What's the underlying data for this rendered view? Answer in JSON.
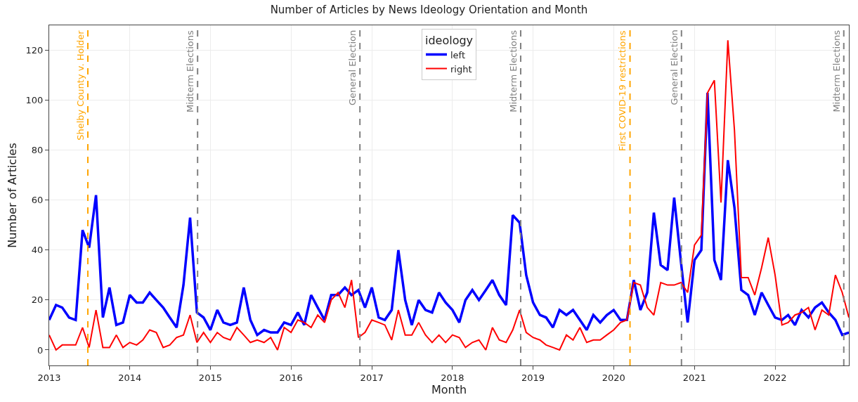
{
  "chart_data": {
    "type": "line",
    "title": "Number of Articles by News Ideology Orientation and Month",
    "xlabel": "Month",
    "ylabel": "Number of Articles",
    "legend_title": "ideology",
    "legend": "top",
    "grid": true,
    "line_style": "solid",
    "x": [
      "2013-01",
      "2013-02",
      "2013-03",
      "2013-04",
      "2013-05",
      "2013-06",
      "2013-07",
      "2013-08",
      "2013-09",
      "2013-10",
      "2013-11",
      "2013-12",
      "2014-01",
      "2014-02",
      "2014-03",
      "2014-04",
      "2014-05",
      "2014-06",
      "2014-07",
      "2014-08",
      "2014-09",
      "2014-10",
      "2014-11",
      "2014-12",
      "2015-01",
      "2015-02",
      "2015-03",
      "2015-04",
      "2015-05",
      "2015-06",
      "2015-07",
      "2015-08",
      "2015-09",
      "2015-10",
      "2015-11",
      "2015-12",
      "2016-01",
      "2016-02",
      "2016-03",
      "2016-04",
      "2016-05",
      "2016-06",
      "2016-07",
      "2016-08",
      "2016-09",
      "2016-10",
      "2016-11",
      "2016-12",
      "2017-01",
      "2017-02",
      "2017-03",
      "2017-04",
      "2017-05",
      "2017-06",
      "2017-07",
      "2017-08",
      "2017-09",
      "2017-10",
      "2017-11",
      "2017-12",
      "2018-01",
      "2018-02",
      "2018-03",
      "2018-04",
      "2018-05",
      "2018-06",
      "2018-07",
      "2018-08",
      "2018-09",
      "2018-10",
      "2018-11",
      "2018-12",
      "2019-01",
      "2019-02",
      "2019-03",
      "2019-04",
      "2019-05",
      "2019-06",
      "2019-07",
      "2019-08",
      "2019-09",
      "2019-10",
      "2019-11",
      "2019-12",
      "2020-01",
      "2020-02",
      "2020-03",
      "2020-04",
      "2020-05",
      "2020-06",
      "2020-07",
      "2020-08",
      "2020-09",
      "2020-10",
      "2020-11",
      "2020-12",
      "2021-01",
      "2021-02",
      "2021-03",
      "2021-04",
      "2021-05",
      "2021-06",
      "2021-07",
      "2021-08",
      "2021-09",
      "2021-10",
      "2021-11",
      "2021-12",
      "2022-01",
      "2022-02",
      "2022-03",
      "2022-04",
      "2022-05",
      "2022-06",
      "2022-07",
      "2022-08",
      "2022-09",
      "2022-10",
      "2022-11",
      "2022-12"
    ],
    "series": [
      {
        "name": "left",
        "color": "#0000ff",
        "values": [
          12,
          18,
          17,
          13,
          12,
          48,
          41,
          62,
          13,
          25,
          10,
          11,
          22,
          19,
          19,
          23,
          20,
          17,
          13,
          9,
          26,
          53,
          15,
          13,
          8,
          16,
          11,
          10,
          11,
          25,
          12,
          6,
          8,
          7,
          7,
          11,
          10,
          15,
          10,
          22,
          17,
          12,
          22,
          22,
          25,
          22,
          24,
          17,
          25,
          13,
          12,
          16,
          40,
          20,
          10,
          20,
          16,
          15,
          23,
          19,
          16,
          11,
          20,
          24,
          20,
          24,
          28,
          22,
          18,
          54,
          51,
          30,
          19,
          14,
          13,
          9,
          16,
          14,
          16,
          12,
          8,
          14,
          11,
          14,
          16,
          12,
          12,
          28,
          16,
          23,
          55,
          34,
          32,
          61,
          35,
          11,
          36,
          40,
          103,
          36,
          28,
          76,
          57,
          24,
          22,
          14,
          23,
          18,
          13,
          12,
          14,
          10,
          16,
          13,
          17,
          19,
          15,
          12,
          6,
          7
        ]
      },
      {
        "name": "right",
        "color": "#ff0000",
        "values": [
          6,
          0,
          2,
          2,
          2,
          9,
          1,
          16,
          1,
          1,
          6,
          1,
          3,
          2,
          4,
          8,
          7,
          1,
          2,
          5,
          6,
          14,
          3,
          7,
          3,
          7,
          5,
          4,
          9,
          6,
          3,
          4,
          3,
          5,
          0,
          9,
          7,
          12,
          11,
          9,
          14,
          11,
          20,
          23,
          17,
          28,
          5,
          7,
          12,
          11,
          10,
          4,
          16,
          6,
          6,
          11,
          6,
          3,
          6,
          3,
          6,
          5,
          1,
          3,
          4,
          0,
          9,
          4,
          3,
          8,
          16,
          7,
          5,
          4,
          2,
          1,
          0,
          6,
          4,
          9,
          3,
          4,
          4,
          6,
          8,
          11,
          12,
          27,
          26,
          17,
          14,
          27,
          26,
          26,
          27,
          23,
          42,
          46,
          103,
          108,
          59,
          124,
          88,
          29,
          29,
          22,
          33,
          45,
          30,
          10,
          11,
          14,
          15,
          17,
          8,
          16,
          14,
          30,
          23,
          13
        ]
      }
    ],
    "xlim": [
      "2013-01-01",
      "2022-12-01"
    ],
    "xticks": [
      {
        "value": "2013-01-01",
        "label": "2013"
      },
      {
        "value": "2014-01-01",
        "label": "2014"
      },
      {
        "value": "2015-01-01",
        "label": "2015"
      },
      {
        "value": "2016-01-01",
        "label": "2016"
      },
      {
        "value": "2017-01-01",
        "label": "2017"
      },
      {
        "value": "2018-01-01",
        "label": "2018"
      },
      {
        "value": "2019-01-01",
        "label": "2019"
      },
      {
        "value": "2020-01-01",
        "label": "2020"
      },
      {
        "value": "2021-01-01",
        "label": "2021"
      },
      {
        "value": "2022-01-01",
        "label": "2022"
      }
    ],
    "ylim": [
      -6.2,
      130
    ],
    "yticks": [
      0,
      20,
      40,
      60,
      80,
      100,
      120
    ],
    "ref_lines": [
      {
        "axis": "x",
        "value": "2013-06-25",
        "label": "Shelby County v. Holder",
        "color": "#ffa500",
        "line_style": "dashed"
      },
      {
        "axis": "x",
        "value": "2014-11-04",
        "label": "Midterm Elections",
        "color": "#808080",
        "line_style": "dashed"
      },
      {
        "axis": "x",
        "value": "2016-11-08",
        "label": "General Election",
        "color": "#808080",
        "line_style": "dashed"
      },
      {
        "axis": "x",
        "value": "2018-11-06",
        "label": "Midterm Elections",
        "color": "#808080",
        "line_style": "dashed"
      },
      {
        "axis": "x",
        "value": "2020-03-15",
        "label": "First COVID-19 restrictions",
        "color": "#ffa500",
        "line_style": "dashed"
      },
      {
        "axis": "x",
        "value": "2020-11-03",
        "label": "General Election",
        "color": "#808080",
        "line_style": "dashed"
      },
      {
        "axis": "x",
        "value": "2022-11-08",
        "label": "Midterm Elections",
        "color": "#808080",
        "line_style": "dashed"
      }
    ]
  }
}
